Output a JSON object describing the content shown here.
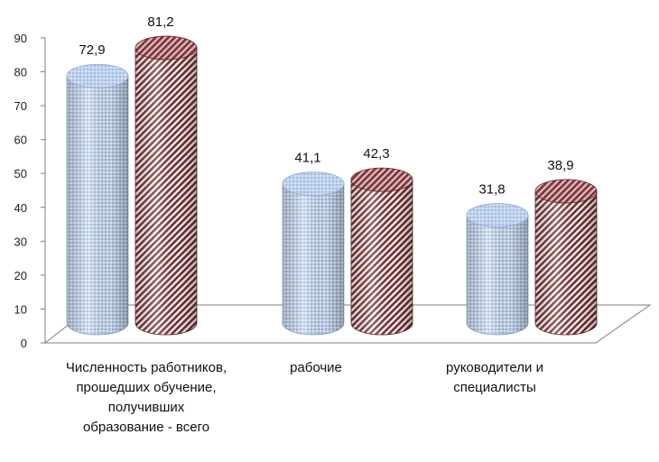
{
  "chart_data": {
    "type": "bar",
    "style": "3d-cylinder",
    "categories": [
      "Численность работников,\nпрошедших обучение,\nполучивших\nобразование - всего",
      "рабочие",
      "руководители и\nспециалисты"
    ],
    "series": [
      {
        "values": [
          72.9,
          41.1,
          31.8
        ],
        "pattern": "dotted",
        "color": "#a9c3e6"
      },
      {
        "values": [
          81.2,
          42.3,
          38.9
        ],
        "pattern": "diagonal-stripes",
        "color": "#7a2f33"
      }
    ],
    "value_labels": [
      [
        "72,9",
        "41,1",
        "31,8"
      ],
      [
        "81,2",
        "42,3",
        "38,9"
      ]
    ],
    "yticks": [
      "0",
      "10",
      "20",
      "30",
      "40",
      "50",
      "60",
      "70",
      "80",
      "90"
    ],
    "ylim": [
      0,
      90
    ],
    "grid": false,
    "legend": "none"
  }
}
